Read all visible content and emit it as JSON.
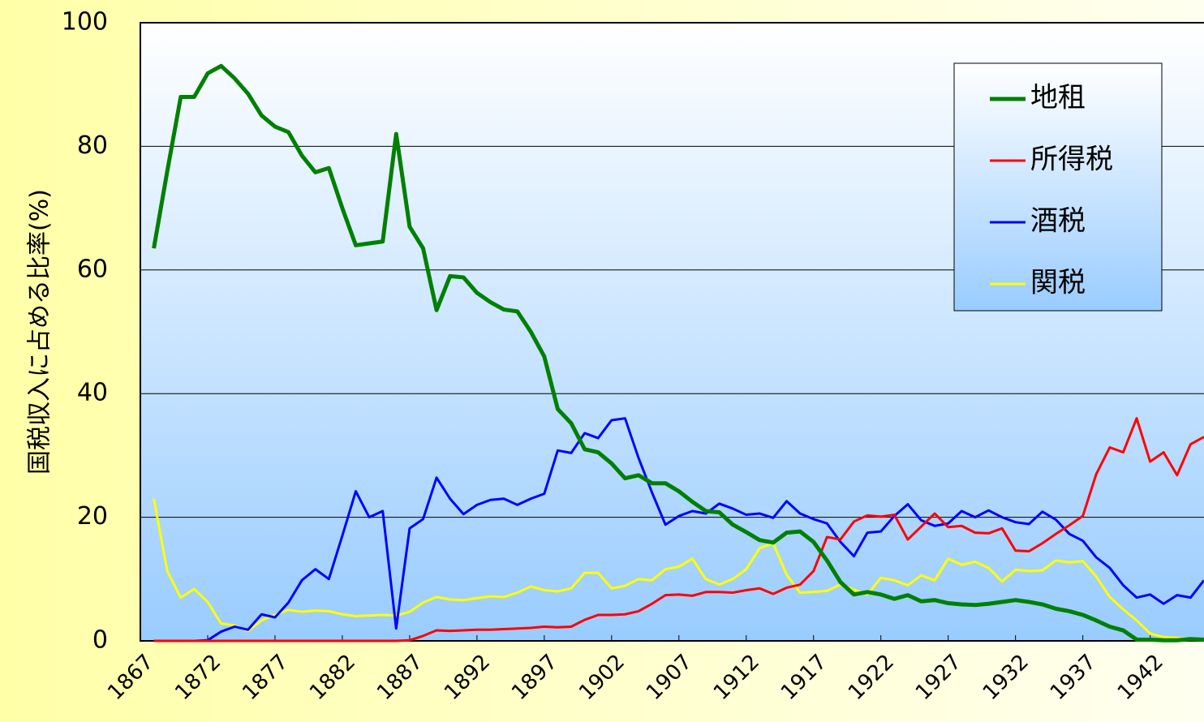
{
  "chart_data": {
    "type": "line",
    "ylabel": "国税収入に占める比率(%)",
    "x": [
      1868,
      1869,
      1870,
      1871,
      1872,
      1873,
      1874,
      1875,
      1876,
      1877,
      1878,
      1879,
      1880,
      1881,
      1882,
      1883,
      1884,
      1885,
      1886,
      1887,
      1888,
      1889,
      1890,
      1891,
      1892,
      1893,
      1894,
      1895,
      1896,
      1897,
      1898,
      1899,
      1900,
      1901,
      1902,
      1903,
      1904,
      1905,
      1906,
      1907,
      1908,
      1909,
      1910,
      1911,
      1912,
      1913,
      1914,
      1915,
      1916,
      1917,
      1918,
      1919,
      1920,
      1921,
      1922,
      1923,
      1924,
      1925,
      1926,
      1927,
      1928,
      1929,
      1930,
      1931,
      1932,
      1933,
      1934,
      1935,
      1936,
      1937,
      1938,
      1939,
      1940,
      1941,
      1942,
      1943,
      1944,
      1945,
      1946
    ],
    "xlim": [
      1867,
      1946
    ],
    "xticks": [
      1867,
      1872,
      1877,
      1882,
      1887,
      1892,
      1897,
      1902,
      1907,
      1912,
      1917,
      1922,
      1927,
      1932,
      1937,
      1942
    ],
    "ylim": [
      0,
      100
    ],
    "yticks": [
      0,
      20,
      40,
      60,
      80,
      100
    ],
    "grid": true,
    "legend": "upper right",
    "series": [
      {
        "name": "地租",
        "color": "#008000",
        "width": 5,
        "values": [
          63.5,
          76,
          88,
          88,
          91.8,
          93,
          91,
          88.5,
          85,
          83.2,
          82.3,
          78.5,
          75.8,
          76.5,
          70,
          64,
          64.3,
          64.6,
          82,
          67,
          63.5,
          53.5,
          59,
          58.8,
          56.3,
          54.8,
          53.6,
          53.3,
          50,
          46,
          37.5,
          35.2,
          31,
          30.5,
          28.7,
          26.3,
          26.8,
          25.5,
          25.5,
          24.2,
          22.5,
          21,
          20.8,
          18.8,
          17.6,
          16.3,
          15.9,
          17.5,
          17.7,
          16,
          13,
          9.5,
          7.5,
          7.9,
          7.5,
          6.8,
          7.4,
          6.4,
          6.6,
          6.1,
          5.9,
          5.8,
          6,
          6.3,
          6.6,
          6.3,
          5.9,
          5.2,
          4.8,
          4.2,
          3.3,
          2.3,
          1.7,
          0.2,
          0.2,
          0.1,
          0.1,
          0.3,
          0.2
        ]
      },
      {
        "name": "所得税",
        "color": "#ff0000",
        "width": 3,
        "values": [
          0,
          0,
          0,
          0,
          0,
          0,
          0,
          0,
          0,
          0,
          0,
          0,
          0,
          0,
          0,
          0,
          0,
          0,
          0,
          0.1,
          0.8,
          1.7,
          1.6,
          1.7,
          1.8,
          1.8,
          1.9,
          2,
          2.1,
          2.3,
          2.2,
          2.3,
          3.4,
          4.2,
          4.2,
          4.3,
          4.8,
          6,
          7.4,
          7.5,
          7.3,
          7.9,
          7.9,
          7.8,
          8.2,
          8.5,
          7.6,
          8.6,
          9.1,
          11.3,
          16.8,
          16.4,
          19.3,
          20.3,
          20.1,
          20.4,
          16.4,
          18.5,
          20.6,
          18.4,
          18.6,
          17.5,
          17.4,
          18.2,
          14.6,
          14.5,
          15.8,
          17.3,
          18.7,
          20.2,
          27,
          31.3,
          30.5,
          36,
          29,
          30.5,
          26.8,
          31.8,
          33
        ]
      },
      {
        "name": "酒税",
        "color": "#0000ff",
        "width": 3,
        "values": [
          0,
          0,
          0,
          0,
          0.1,
          1.5,
          2.3,
          1.8,
          4.3,
          3.8,
          6.2,
          9.8,
          11.6,
          10,
          17,
          24.2,
          20,
          21,
          2,
          18.2,
          19.7,
          26.4,
          23,
          20.5,
          22,
          22.8,
          23,
          22,
          23,
          23.8,
          30.8,
          30.4,
          33.6,
          32.8,
          35.7,
          36,
          29.6,
          24,
          18.8,
          20.2,
          21,
          20.6,
          22.2,
          21.4,
          20.4,
          20.6,
          19.9,
          22.6,
          20.6,
          19.7,
          19,
          16,
          13.7,
          17.5,
          17.7,
          20.2,
          22.1,
          19.5,
          18.6,
          19,
          21,
          20,
          21.1,
          20,
          19.2,
          18.9,
          20.9,
          19.6,
          17.3,
          16.2,
          13.5,
          11.8,
          9,
          7,
          7.5,
          6,
          7.4,
          7,
          9.8
        ]
      },
      {
        "name": "関税",
        "color": "#ffff00",
        "width": 3,
        "values": [
          23,
          11.3,
          7,
          8.4,
          6.3,
          2.8,
          2.5,
          1.6,
          3.3,
          4.2,
          5,
          4.7,
          4.9,
          4.8,
          4.3,
          4,
          4.1,
          4.2,
          4.1,
          4.7,
          6.2,
          7.1,
          6.7,
          6.6,
          6.9,
          7.2,
          7.1,
          7.8,
          8.8,
          8.2,
          8,
          8.5,
          11,
          11,
          8.5,
          8.9,
          10,
          9.8,
          11.6,
          12,
          13.3,
          10,
          9.1,
          10,
          11.6,
          15,
          15.8,
          10.7,
          7.8,
          7.9,
          8.1,
          9.1,
          8.3,
          7.5,
          10.2,
          9.8,
          9,
          10.6,
          9.8,
          13.3,
          12.3,
          12.8,
          11.8,
          9.6,
          11.5,
          11.3,
          11.4,
          13,
          12.7,
          12.9,
          10.4,
          7.1,
          5.1,
          3.3,
          1.2,
          0.6,
          0.5,
          0.3,
          0.2
        ]
      }
    ]
  }
}
